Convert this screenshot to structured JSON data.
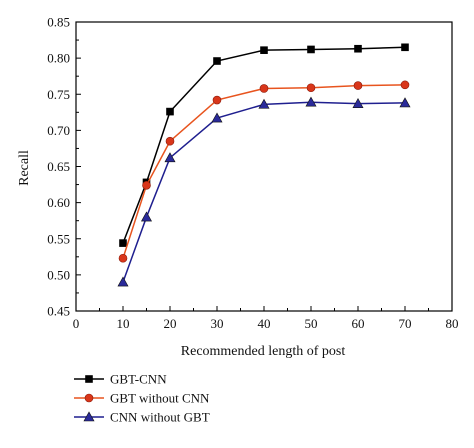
{
  "chart_data": {
    "type": "line",
    "xlabel": "Recommended length of post",
    "ylabel": "Recall",
    "xlim": [
      0,
      80
    ],
    "ylim": [
      0.45,
      0.85
    ],
    "xticks": [
      0,
      10,
      20,
      30,
      40,
      50,
      60,
      70,
      80
    ],
    "yticks": [
      0.45,
      0.5,
      0.55,
      0.6,
      0.65,
      0.7,
      0.75,
      0.8,
      0.85
    ],
    "xtick_labels": [
      "0",
      "10",
      "20",
      "30",
      "40",
      "50",
      "60",
      "70",
      "80"
    ],
    "ytick_labels": [
      "0.45",
      "0.50",
      "0.55",
      "0.60",
      "0.65",
      "0.70",
      "0.75",
      "0.80",
      "0.85"
    ],
    "grid": false,
    "legend_position": "bottom-left, below plot",
    "x": [
      10,
      15,
      20,
      30,
      40,
      50,
      60,
      70
    ],
    "series": [
      {
        "name": "GBT-CNN",
        "marker": "square",
        "color": "#000000",
        "marker_color": "#000000",
        "values": [
          0.544,
          0.628,
          0.726,
          0.796,
          0.811,
          0.812,
          0.813,
          0.815
        ]
      },
      {
        "name": "GBT without CNN",
        "marker": "circle",
        "color": "#e8541e",
        "marker_color": "#d9361a",
        "values": [
          0.523,
          0.624,
          0.685,
          0.742,
          0.758,
          0.759,
          0.762,
          0.763
        ]
      },
      {
        "name": "CNN without GBT",
        "marker": "triangle",
        "color": "#1f1f8f",
        "marker_color": "#2a2a9a",
        "values": [
          0.49,
          0.58,
          0.662,
          0.717,
          0.736,
          0.739,
          0.737,
          0.738
        ]
      }
    ]
  }
}
